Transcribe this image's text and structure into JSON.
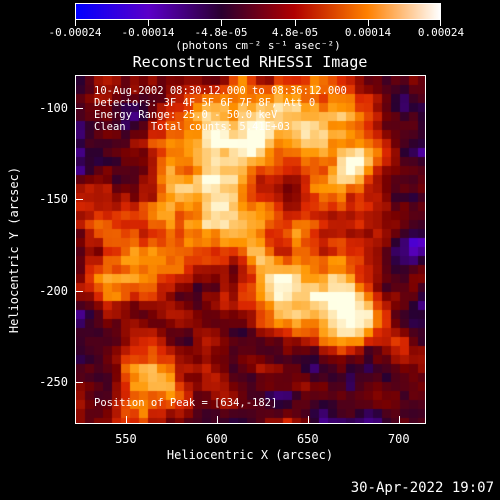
{
  "colorbar": {
    "labels": [
      "-0.00024",
      "-0.00014",
      "-4.8e-05",
      "4.8e-05",
      "0.00014",
      "0.00024"
    ],
    "units": "(photons cm⁻² s⁻¹ asec⁻²)",
    "colors": [
      "#0000ff",
      "#5b00c8",
      "#2a0030",
      "#b00000",
      "#ff8000",
      "#ffffff"
    ]
  },
  "plot": {
    "title": "Reconstructed RHESSI Image",
    "info_lines": [
      "10-Aug-2002 08:30:12.000 to 08:36:12.000",
      "Detectors: 3F 4F 5F 6F 7F 8F, Att 0",
      "Energy Range: 25.0 - 50.0 keV",
      "Clean    Total counts: 5.41E+03"
    ],
    "peak_label": "Position of Peak = [634,-182]",
    "xlabel": "Heliocentric X (arcsec)",
    "ylabel": "Heliocentric Y (arcsec)",
    "xticks": [
      "550",
      "600",
      "650",
      "700"
    ],
    "yticks": [
      "-100",
      "-150",
      "-200",
      "-250"
    ],
    "x_range": [
      522,
      715
    ],
    "y_range": [
      -273,
      -82
    ]
  },
  "timestamp": "30-Apr-2022 19:07"
}
